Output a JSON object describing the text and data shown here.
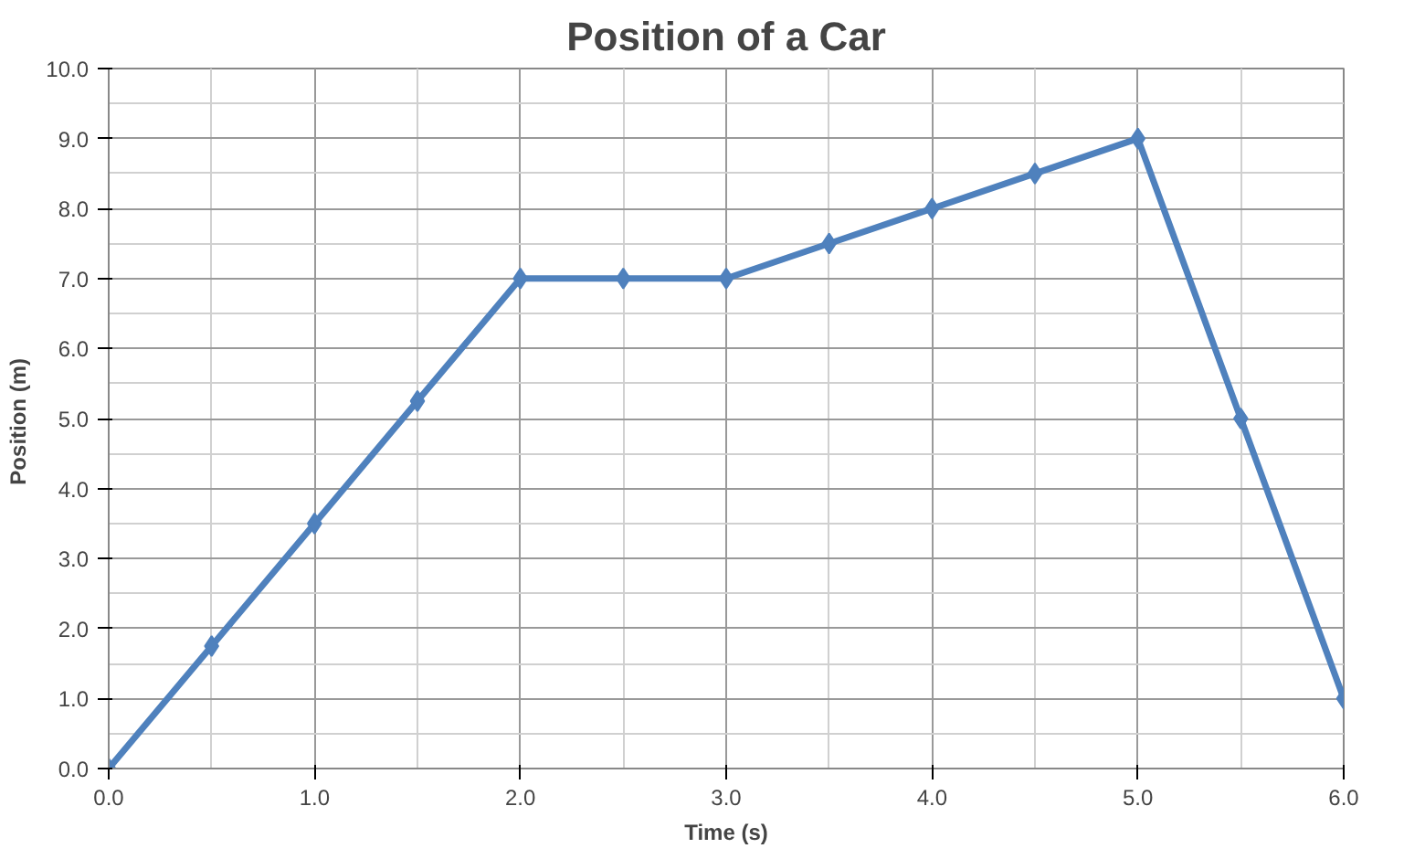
{
  "chart_data": {
    "type": "line",
    "title": "Position of a Car",
    "xlabel": "Time (s)",
    "ylabel": "Position  (m)",
    "x": [
      0,
      0.5,
      1,
      1.5,
      2,
      2.5,
      3,
      3.5,
      4,
      4.5,
      5,
      5.5,
      6
    ],
    "series": [
      {
        "color": "#4f81bd",
        "values": [
          0,
          1.75,
          3.5,
          5.25,
          7,
          7,
          7,
          7.5,
          8,
          8.5,
          9,
          5,
          1
        ]
      }
    ],
    "xlim": [
      0,
      6
    ],
    "ylim": [
      0,
      10
    ],
    "xticks": [
      {
        "value": 0,
        "label": "0.0"
      },
      {
        "value": 1,
        "label": "1.0"
      },
      {
        "value": 2,
        "label": "2.0"
      },
      {
        "value": 3,
        "label": "3.0"
      },
      {
        "value": 4,
        "label": "4.0"
      },
      {
        "value": 5,
        "label": "5.0"
      },
      {
        "value": 6,
        "label": "6.0"
      }
    ],
    "yticks": [
      {
        "value": 0,
        "label": "0.0"
      },
      {
        "value": 1,
        "label": "1.0"
      },
      {
        "value": 2,
        "label": "2.0"
      },
      {
        "value": 3,
        "label": "3.0"
      },
      {
        "value": 4,
        "label": "4.0"
      },
      {
        "value": 5,
        "label": "5.0"
      },
      {
        "value": 6,
        "label": "6.0"
      },
      {
        "value": 7,
        "label": "7.0"
      },
      {
        "value": 8,
        "label": "8.0"
      },
      {
        "value": 9,
        "label": "9.0"
      },
      {
        "value": 10,
        "label": "10.0"
      }
    ],
    "grid": true,
    "marker": "diamond",
    "line_style": "solid"
  }
}
